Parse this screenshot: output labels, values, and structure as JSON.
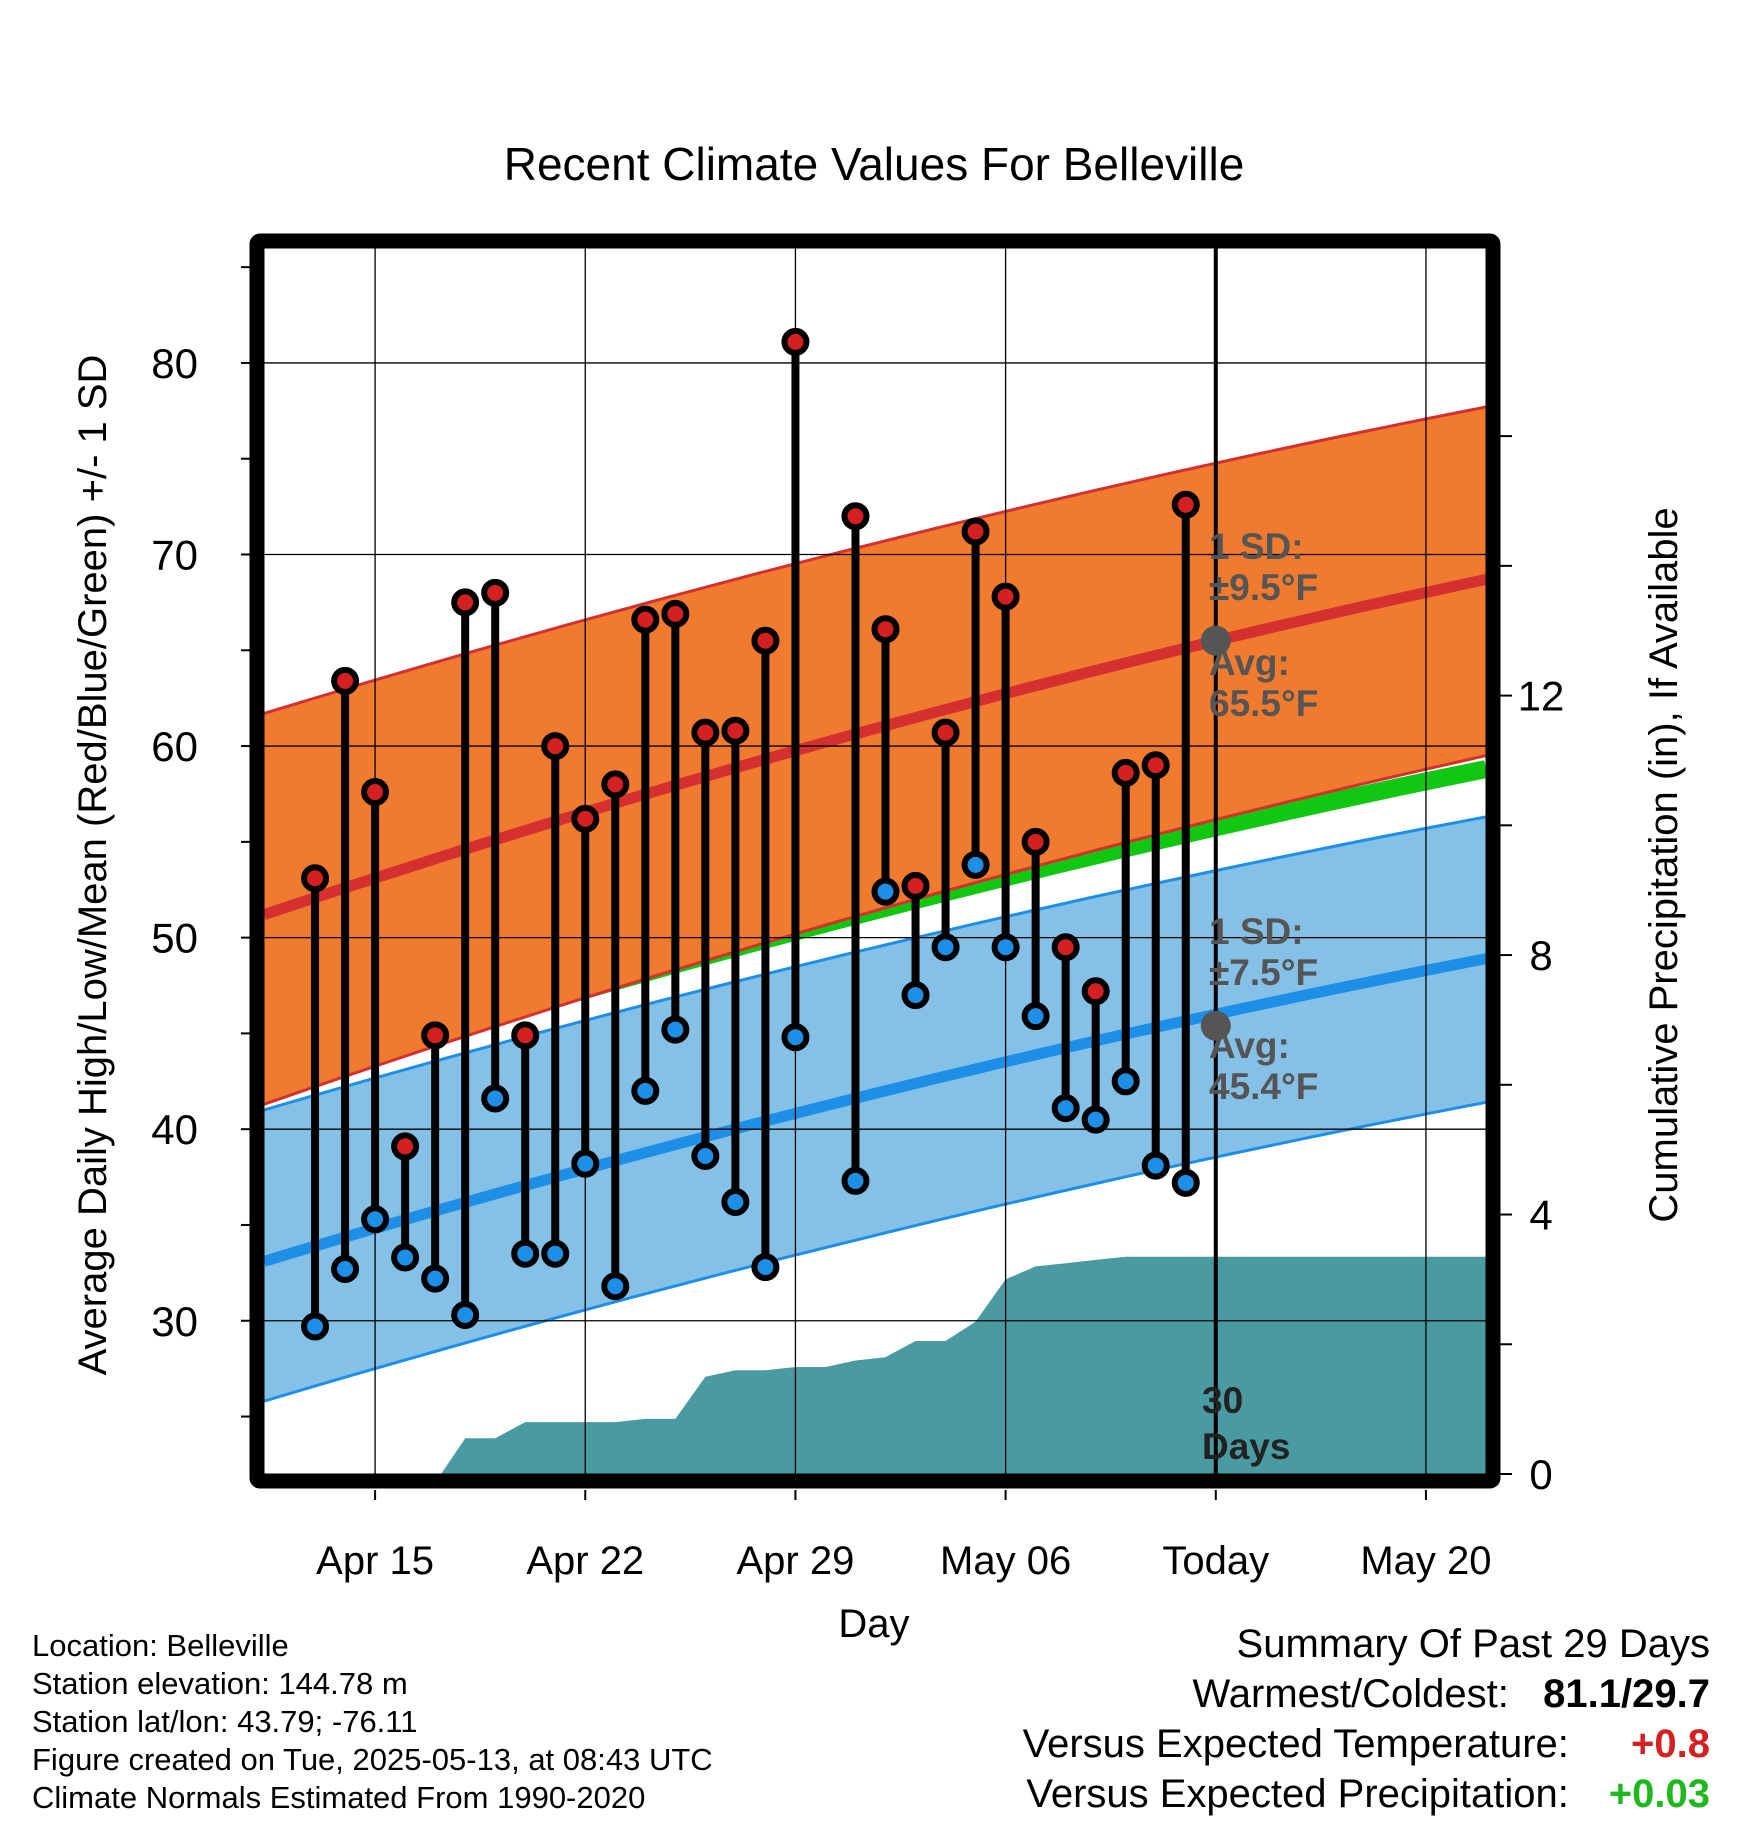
{
  "title": "Recent Climate Values For Belleville",
  "colors": {
    "high_band": "#f07b2e",
    "high_band_edge": "#d43030",
    "high_mean": "#d43030",
    "low_band": "#85c1e6",
    "low_band_edge": "#1e8fe6",
    "low_mean": "#1e8fe6",
    "mean_line": "#12c712",
    "precip_fill": "#4a9aa2",
    "high_marker": "#d42020",
    "low_marker": "#1e8fe6",
    "annot_marker": "#555555"
  },
  "chart_data": {
    "type": "line",
    "title": "Recent Climate Values For Belleville",
    "xlabel": "Day",
    "ylabel": "Average Daily High/Low/Mean (Red/Blue/Green) +/- 1 SD",
    "y2label": "Cumulative Precipitation (in), If Available",
    "x_ticks": [
      {
        "label": "Apr 15",
        "day": 3
      },
      {
        "label": "Apr 22",
        "day": 10
      },
      {
        "label": "Apr 29",
        "day": 17
      },
      {
        "label": "May 06",
        "day": 24
      },
      {
        "label": "Today",
        "day": 31
      },
      {
        "label": "May 20",
        "day": 38
      }
    ],
    "xlim_days": [
      -0.7,
      40
    ],
    "ylim": [
      22,
      86
    ],
    "y_ticks": [
      30,
      40,
      50,
      60,
      70,
      80
    ],
    "y2lim": [
      0,
      18.9
    ],
    "y2_ticks": [
      0,
      4,
      8,
      12
    ],
    "grid": true,
    "today_day": 31,
    "today_label": [
      "30",
      "Days"
    ],
    "normals": {
      "days": [
        -0.7,
        40
      ],
      "high_mean": [
        51.2,
        68.7
      ],
      "high_upper": [
        61.7,
        77.7
      ],
      "high_lower": [
        41.3,
        59.5
      ],
      "low_mean": [
        33.1,
        48.9
      ],
      "low_upper": [
        41.0,
        56.3
      ],
      "low_lower": [
        25.8,
        41.4
      ],
      "daily_mean": [
        42.2,
        58.8
      ]
    },
    "annotations": {
      "high": {
        "sd_label": "1 SD:",
        "sd_value": "±9.5°F",
        "avg_label": "Avg:",
        "avg_value": "65.5°F",
        "avg": 65.5
      },
      "low": {
        "sd_label": "1 SD:",
        "sd_value": "±7.5°F",
        "avg_label": "Avg:",
        "avg_value": "45.4°F",
        "avg": 45.4
      }
    },
    "daily": [
      {
        "day": 1,
        "high": 53.1,
        "low": 29.7
      },
      {
        "day": 2,
        "high": 63.4,
        "low": 32.7
      },
      {
        "day": 3,
        "high": 57.6,
        "low": 35.3
      },
      {
        "day": 4,
        "high": 39.1,
        "low": 33.3
      },
      {
        "day": 5,
        "high": 44.9,
        "low": 32.2
      },
      {
        "day": 6,
        "high": 67.5,
        "low": 30.3
      },
      {
        "day": 7,
        "high": 68.0,
        "low": 41.6
      },
      {
        "day": 8,
        "high": 44.9,
        "low": 33.5
      },
      {
        "day": 9,
        "high": 60.0,
        "low": 33.5
      },
      {
        "day": 10,
        "high": 56.2,
        "low": 38.2
      },
      {
        "day": 11,
        "high": 58.0,
        "low": 31.8
      },
      {
        "day": 12,
        "high": 66.6,
        "low": 42.0
      },
      {
        "day": 13,
        "high": 66.9,
        "low": 45.2
      },
      {
        "day": 14,
        "high": 60.7,
        "low": 38.6
      },
      {
        "day": 15,
        "high": 60.8,
        "low": 36.2
      },
      {
        "day": 16,
        "high": 65.5,
        "low": 32.8
      },
      {
        "day": 17,
        "high": 81.1,
        "low": 44.8
      },
      {
        "day": 19,
        "high": 72.0,
        "low": 37.3
      },
      {
        "day": 20,
        "high": 66.1,
        "low": 52.4
      },
      {
        "day": 21,
        "high": 52.7,
        "low": 47.0
      },
      {
        "day": 22,
        "high": 60.7,
        "low": 49.5
      },
      {
        "day": 23,
        "high": 71.2,
        "low": 53.8
      },
      {
        "day": 24,
        "high": 67.8,
        "low": 49.5
      },
      {
        "day": 25,
        "high": 55.0,
        "low": 45.9
      },
      {
        "day": 26,
        "high": 49.5,
        "low": 41.1
      },
      {
        "day": 27,
        "high": 47.2,
        "low": 40.5
      },
      {
        "day": 28,
        "high": 58.6,
        "low": 42.5
      },
      {
        "day": 29,
        "high": 59.0,
        "low": 38.1
      },
      {
        "day": 30,
        "high": 72.6,
        "low": 37.2
      }
    ],
    "precip": {
      "days": [
        5.2,
        6,
        7,
        8,
        9,
        10,
        11,
        12,
        13,
        14,
        15,
        16,
        17,
        18,
        19,
        20,
        21,
        22,
        23,
        24,
        25,
        26,
        27,
        28,
        29,
        30,
        31,
        40
      ],
      "values": [
        0.0,
        0.55,
        0.55,
        0.8,
        0.8,
        0.8,
        0.8,
        0.85,
        0.85,
        1.5,
        1.6,
        1.6,
        1.65,
        1.65,
        1.75,
        1.8,
        2.05,
        2.05,
        2.35,
        3.0,
        3.2,
        3.25,
        3.3,
        3.35,
        3.35,
        3.35,
        3.35,
        3.35
      ]
    }
  },
  "station_info": [
    "Location: Belleville",
    "Station elevation: 144.78 m",
    "Station lat/lon: 43.79; -76.11",
    "Figure created on Tue, 2025-05-13, at 08:43 UTC",
    "Climate Normals Estimated From 1990-2020"
  ],
  "summary": {
    "heading": "Summary Of Past 29 Days",
    "warm_cold_label": "Warmest/Coldest:",
    "warm_cold_value": "81.1/29.7",
    "temp_label": "Versus Expected Temperature:",
    "temp_value": "+0.8",
    "precip_label": "Versus Expected Precipitation:",
    "precip_value": "+0.03"
  }
}
